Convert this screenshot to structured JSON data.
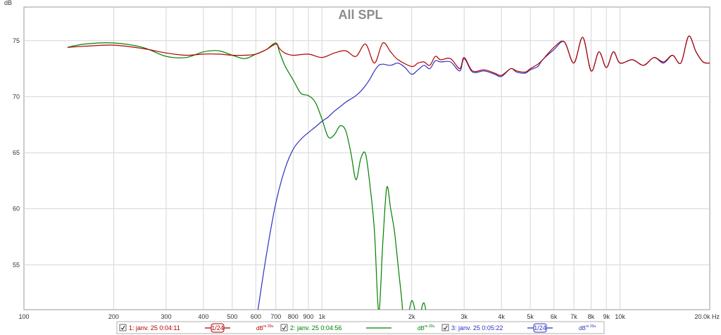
{
  "chart_data": {
    "type": "line",
    "title": "All SPL",
    "ylabel": "dB",
    "x_scale": "log",
    "xlim": [
      100,
      20000
    ],
    "ylim": [
      51,
      78
    ],
    "grid": true,
    "x_ticks": [
      {
        "value": 100,
        "label": "100"
      },
      {
        "value": 200,
        "label": "200"
      },
      {
        "value": 300,
        "label": "300"
      },
      {
        "value": 400,
        "label": "400"
      },
      {
        "value": 500,
        "label": "500"
      },
      {
        "value": 600,
        "label": "600"
      },
      {
        "value": 700,
        "label": "700"
      },
      {
        "value": 800,
        "label": "800"
      },
      {
        "value": 900,
        "label": "900"
      },
      {
        "value": 1000,
        "label": "1k"
      },
      {
        "value": 2000,
        "label": "2k"
      },
      {
        "value": 3000,
        "label": "3k"
      },
      {
        "value": 4000,
        "label": "4k"
      },
      {
        "value": 5000,
        "label": "5k"
      },
      {
        "value": 6000,
        "label": "6k"
      },
      {
        "value": 7000,
        "label": "7k"
      },
      {
        "value": 8000,
        "label": "8k"
      },
      {
        "value": 9000,
        "label": "9k"
      },
      {
        "value": 10000,
        "label": "10k"
      },
      {
        "value": 20000,
        "label": "20.0k Hz"
      }
    ],
    "y_ticks": [
      {
        "value": 55,
        "label": "55"
      },
      {
        "value": 60,
        "label": "60"
      },
      {
        "value": 65,
        "label": "65"
      },
      {
        "value": 70,
        "label": "70"
      },
      {
        "value": 75,
        "label": "75"
      }
    ],
    "series": [
      {
        "name": "1: janv. 25 0:04:11",
        "color": "#b00000",
        "x": [
          140,
          160,
          200,
          250,
          300,
          350,
          400,
          450,
          500,
          550,
          600,
          650,
          700,
          720,
          750,
          800,
          900,
          1000,
          1100,
          1200,
          1300,
          1400,
          1500,
          1600,
          1700,
          1800,
          2000,
          2100,
          2200,
          2300,
          2400,
          2500,
          2700,
          2900,
          3000,
          3200,
          3500,
          3800,
          4000,
          4300,
          4500,
          4800,
          5000,
          5300,
          5500,
          6000,
          6500,
          7000,
          7500,
          8000,
          8500,
          9000,
          9500,
          10000,
          11000,
          12000,
          13000,
          14000,
          15000,
          16000,
          17000,
          18000,
          19000,
          20000
        ],
        "y": [
          74.4,
          74.5,
          74.6,
          74.3,
          73.9,
          73.7,
          73.8,
          73.8,
          73.7,
          73.7,
          73.8,
          74.2,
          74.7,
          74.3,
          73.9,
          73.7,
          73.8,
          73.5,
          73.9,
          74.1,
          73.6,
          74.7,
          73.0,
          74.8,
          74.0,
          73.3,
          72.7,
          73.0,
          73.1,
          72.8,
          73.6,
          73.3,
          73.4,
          72.5,
          73.5,
          72.3,
          72.4,
          72.1,
          71.9,
          72.5,
          72.3,
          72.2,
          72.5,
          72.9,
          73.3,
          74.4,
          74.9,
          73.0,
          75.3,
          72.3,
          74.0,
          72.6,
          74.0,
          73.0,
          73.3,
          72.8,
          73.5,
          73.1,
          73.7,
          73.0,
          75.4,
          74.0,
          73.1,
          73.0
        ]
      },
      {
        "name": "2: janv. 25 0:04:56",
        "color": "#008000",
        "x": [
          140,
          160,
          200,
          250,
          300,
          350,
          400,
          450,
          500,
          550,
          600,
          650,
          700,
          720,
          750,
          800,
          850,
          900,
          950,
          1000,
          1050,
          1100,
          1150,
          1200,
          1250,
          1300,
          1350,
          1400,
          1450,
          1500,
          1550,
          1600,
          1650,
          1700,
          1750,
          1800,
          1850,
          1900,
          2000,
          2100,
          2200,
          2300,
          2400,
          2500
        ],
        "y": [
          74.4,
          74.7,
          74.8,
          74.4,
          73.6,
          73.5,
          74.0,
          74.1,
          73.7,
          73.4,
          73.8,
          74.2,
          74.8,
          74.0,
          72.8,
          71.5,
          70.3,
          70.1,
          69.5,
          68.0,
          66.4,
          66.6,
          67.4,
          67.0,
          65.0,
          62.6,
          64.5,
          64.9,
          62.0,
          58.0,
          50.8,
          57.0,
          61.9,
          60.0,
          58.0,
          55.0,
          52.0,
          49.0,
          51.8,
          50.0,
          51.6,
          49.0,
          50.8,
          48.0
        ]
      },
      {
        "name": "3: janv. 25 0:05:22",
        "color": "#3030c0",
        "x": [
          610,
          650,
          700,
          750,
          800,
          850,
          900,
          950,
          1000,
          1050,
          1100,
          1150,
          1200,
          1250,
          1300,
          1350,
          1400,
          1450,
          1500,
          1550,
          1600,
          1700,
          1800,
          1900,
          2000,
          2100,
          2200,
          2300,
          2400,
          2500,
          2700,
          2900,
          3000,
          3200,
          3500,
          3800,
          4000,
          4300,
          4500,
          4800,
          5000,
          5300,
          5500,
          6000,
          6500,
          7000,
          7500,
          8000,
          8500,
          9000,
          9500,
          10000,
          11000,
          12000,
          13000,
          14000,
          15000,
          16000,
          17000,
          18000,
          19000,
          20000
        ],
        "y": [
          51,
          55.8,
          60.5,
          63.5,
          65.3,
          66.2,
          66.8,
          67.3,
          67.8,
          68.2,
          68.7,
          69.1,
          69.5,
          69.8,
          70.1,
          70.5,
          71.0,
          71.6,
          72.3,
          72.8,
          72.9,
          72.8,
          73.0,
          72.6,
          72.0,
          72.4,
          72.8,
          72.5,
          73.2,
          73.1,
          73.1,
          72.3,
          73.4,
          72.2,
          72.3,
          72.0,
          71.8,
          72.5,
          72.2,
          72.1,
          72.4,
          72.7,
          73.3,
          74.2,
          74.9,
          73.0,
          75.3,
          72.3,
          74.0,
          72.6,
          74.0,
          73.0,
          73.3,
          72.8,
          73.5,
          73.0,
          73.7,
          73.0,
          75.4,
          74.0,
          73.1,
          73.0
        ]
      }
    ]
  },
  "legend": [
    {
      "label": "1: janv. 25 0:04:11",
      "checked": true,
      "smoothing": "1/24",
      "unit": "dB",
      "unit_sup": "re 20u",
      "color": "#b00000"
    },
    {
      "label": "2: janv. 25 0:04:56",
      "checked": true,
      "smoothing": "",
      "unit": "dB",
      "unit_sup": "re 20u",
      "color": "#008000"
    },
    {
      "label": "3: janv. 25 0:05:22",
      "checked": true,
      "smoothing": "1/24",
      "unit": "dB",
      "unit_sup": "re 20u",
      "color": "#3030c0"
    }
  ]
}
